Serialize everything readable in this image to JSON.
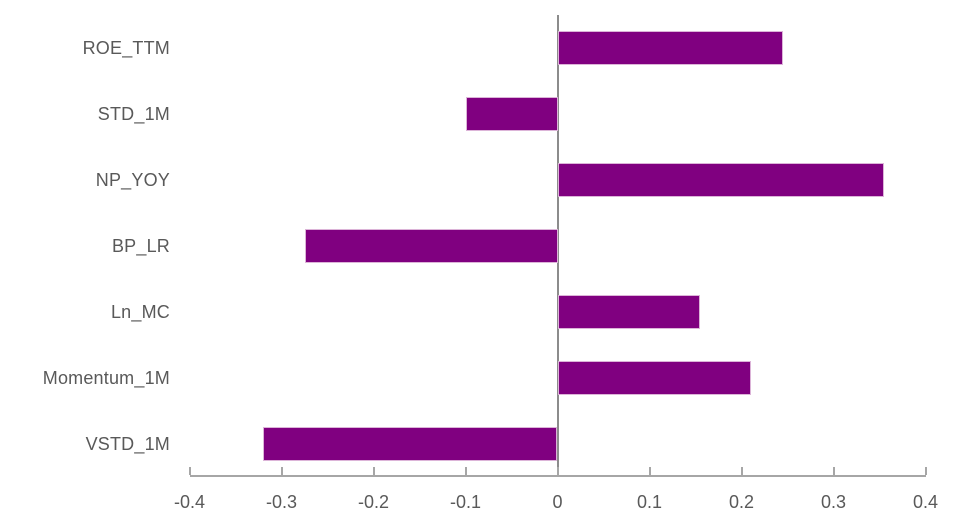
{
  "chart_data": {
    "type": "bar",
    "orientation": "horizontal",
    "title": "",
    "xlabel": "",
    "ylabel": "",
    "categories": [
      "ROE_TTM",
      "STD_1M",
      "NP_YOY",
      "BP_LR",
      "Ln_MC",
      "Momentum_1M",
      "VSTD_1M"
    ],
    "values": [
      0.245,
      -0.1,
      0.355,
      -0.275,
      0.155,
      0.21,
      -0.32
    ],
    "xlim": [
      -0.4,
      0.4
    ],
    "xticks": [
      -0.4,
      -0.3,
      -0.2,
      -0.1,
      0,
      0.1,
      0.2,
      0.3,
      0.4
    ],
    "xtick_labels": [
      "-0.4",
      "-0.3",
      "-0.2",
      "-0.1",
      "0",
      "0.1",
      "0.2",
      "0.3",
      "0.4"
    ],
    "grid": false,
    "legend": false,
    "zero_baseline": true,
    "tick_direction": "inside"
  },
  "style": {
    "bar_color": "#800080",
    "bar_border_color": "#dcb4d8",
    "axis_line_color": "#a6a6a6",
    "zero_line_color": "#8c8c8c",
    "label_color": "#595959",
    "background_color": "#ffffff"
  }
}
